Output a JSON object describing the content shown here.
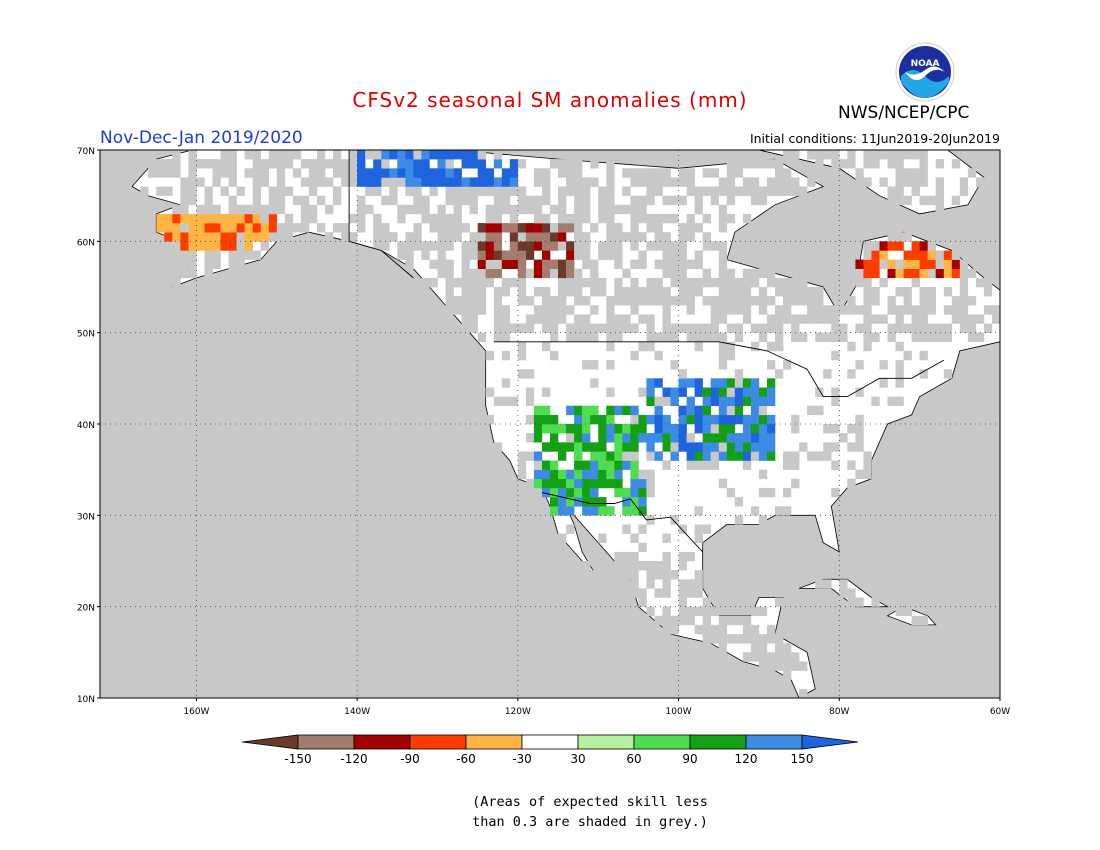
{
  "header": {
    "title": "CFSv2 seasonal SM anomalies (mm)",
    "season": "Nov-Dec-Jan 2019/2020",
    "agency": "NWS/NCEP/CPC",
    "initial_conditions": "Initial conditions: 11Jun2019-20Jun2019",
    "logo_text": "NOAA"
  },
  "map": {
    "lat_range": [
      10,
      70
    ],
    "lon_range": [
      -172,
      -60
    ],
    "lat_ticks": [
      "10N",
      "20N",
      "30N",
      "40N",
      "50N",
      "60N",
      "70N"
    ],
    "lon_ticks": [
      "160W",
      "140W",
      "120W",
      "100W",
      "80W",
      "60W"
    ],
    "grid": true,
    "masked_color": "#c8c8c8",
    "land_color": "#ffffff",
    "ocean_color": "#c8c8c8"
  },
  "legend": {
    "colors": [
      "#6b3a2a",
      "#a37c6e",
      "#a30000",
      "#ff3c00",
      "#ffb446",
      "#ffffff",
      "#b4f0a0",
      "#50dc50",
      "#14a014",
      "#3c8ce6",
      "#1e64dc"
    ],
    "labels": [
      "-150",
      "-120",
      "-90",
      "-60",
      "-30",
      "30",
      "60",
      "90",
      "120",
      "150"
    ]
  },
  "note": {
    "line1": "(Areas of expected skill less",
    "line2": "than 0.3 are shaded in grey.)"
  },
  "anomaly_regions": [
    {
      "name": "great-plains-wet",
      "lat": [
        36,
        45
      ],
      "lon": [
        -104,
        -88
      ],
      "category": "120"
    },
    {
      "name": "southwest-wet",
      "lat": [
        30,
        42
      ],
      "lon": [
        -118,
        -104
      ],
      "category": "90"
    },
    {
      "name": "western-canada-dry",
      "lat": [
        56,
        62
      ],
      "lon": [
        -125,
        -113
      ],
      "category": "-120"
    },
    {
      "name": "alaska-dry",
      "lat": [
        59,
        63
      ],
      "lon": [
        -168,
        -150
      ],
      "category": "-30"
    },
    {
      "name": "labrador-dry",
      "lat": [
        56,
        60
      ],
      "lon": [
        -78,
        -65
      ],
      "category": "-60"
    },
    {
      "name": "yukon-wet",
      "lat": [
        66,
        70
      ],
      "lon": [
        -140,
        -120
      ],
      "category": "150"
    }
  ]
}
